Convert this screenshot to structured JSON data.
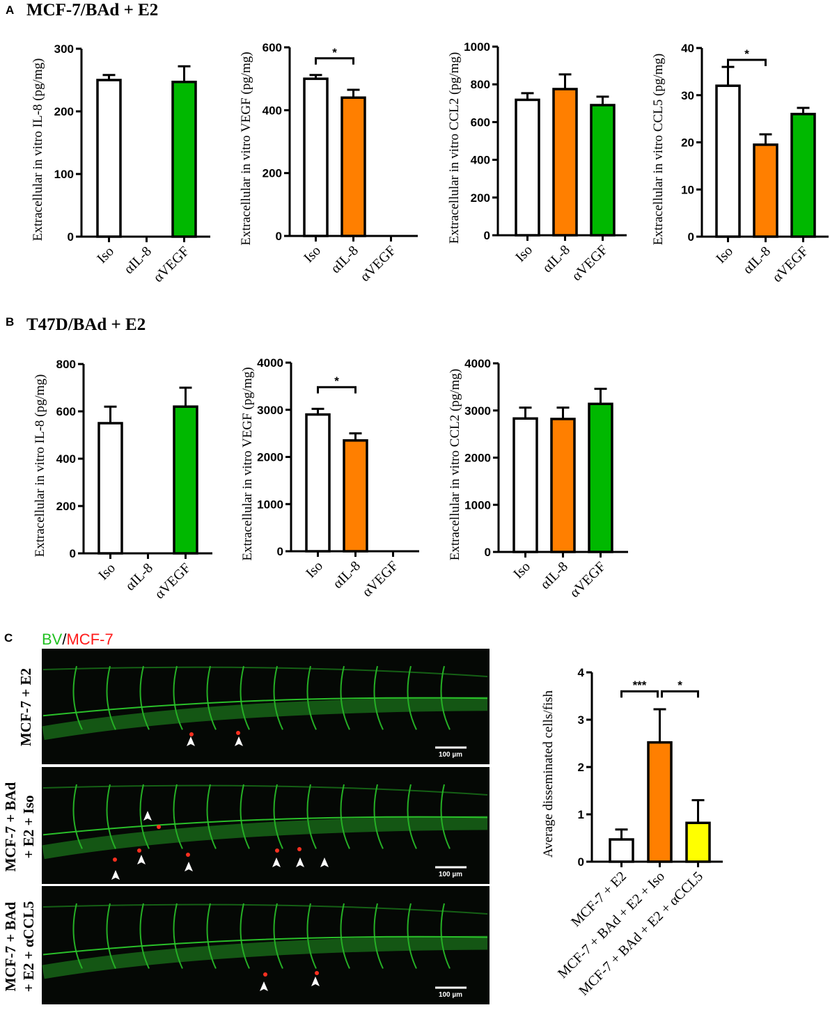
{
  "panels": {
    "A": {
      "letter": "A",
      "title": "MCF-7/BAd + E2"
    },
    "B": {
      "letter": "B",
      "title": "T47D/BAd + E2"
    },
    "C": {
      "letter": "C",
      "legend_bv": "BV",
      "legend_sep": "/",
      "legend_mcf": "MCF-7",
      "rows": [
        "MCF-7 + E2",
        "MCF-7 + BAd",
        "+ E2 + Iso",
        "MCF-7 + BAd",
        "+ E2 + αCCL5"
      ],
      "scale_bar_label": "100 µm"
    }
  },
  "colors": {
    "white": "#ffffff",
    "orange": "#ff7f00",
    "green": "#00b800",
    "yellow": "#ffff00"
  },
  "chart_data": [
    {
      "type": "bar",
      "panel": "A",
      "ylabel": "Extracellular in vitro IL-8 (pg/mg)",
      "categories": [
        "Iso",
        "αIL-8",
        "αVEGF"
      ],
      "values": [
        250,
        0,
        247
      ],
      "errors": [
        8,
        0,
        25
      ],
      "colors": [
        "#ffffff",
        "#ff7f00",
        "#00b800"
      ],
      "ylim": [
        0,
        300
      ],
      "yticks": [
        0,
        100,
        200,
        300
      ],
      "sig": []
    },
    {
      "type": "bar",
      "panel": "A",
      "ylabel": "Extracellular in vitro VEGF (pg/mg)",
      "categories": [
        "Iso",
        "αIL-8",
        "αVEGF"
      ],
      "values": [
        500,
        440,
        0
      ],
      "errors": [
        12,
        25,
        0
      ],
      "colors": [
        "#ffffff",
        "#ff7f00",
        "#00b800"
      ],
      "ylim": [
        0,
        600
      ],
      "yticks": [
        0,
        200,
        400,
        600
      ],
      "sig": [
        {
          "from": 0,
          "to": 1,
          "level": 565,
          "label": "*"
        }
      ]
    },
    {
      "type": "bar",
      "panel": "A",
      "ylabel": "Extracellular in vitro CCL2 (pg/mg)",
      "categories": [
        "Iso",
        "αIL-8",
        "αVEGF"
      ],
      "values": [
        718,
        775,
        690
      ],
      "errors": [
        35,
        78,
        45
      ],
      "colors": [
        "#ffffff",
        "#ff7f00",
        "#00b800"
      ],
      "ylim": [
        0,
        1000
      ],
      "yticks": [
        0,
        200,
        400,
        600,
        800,
        1000
      ],
      "sig": []
    },
    {
      "type": "bar",
      "panel": "A",
      "ylabel": "Extracellular in vitro CCL5 (pg/mg)",
      "categories": [
        "Iso",
        "αIL-8",
        "αVEGF"
      ],
      "values": [
        32,
        19.5,
        26
      ],
      "errors": [
        4,
        2.2,
        1.3
      ],
      "colors": [
        "#ffffff",
        "#ff7f00",
        "#00b800"
      ],
      "ylim": [
        0,
        40
      ],
      "yticks": [
        0,
        10,
        20,
        30,
        40
      ],
      "sig": [
        {
          "from": 0,
          "to": 1,
          "level": 37.5,
          "label": "*"
        }
      ]
    },
    {
      "type": "bar",
      "panel": "B",
      "ylabel": "Extracellular in vitro IL-8 (pg/mg)",
      "categories": [
        "Iso",
        "αIL-8",
        "αVEGF"
      ],
      "values": [
        550,
        0,
        620
      ],
      "errors": [
        70,
        0,
        80
      ],
      "colors": [
        "#ffffff",
        "#ff7f00",
        "#00b800"
      ],
      "ylim": [
        0,
        800
      ],
      "yticks": [
        0,
        200,
        400,
        600,
        800
      ],
      "sig": []
    },
    {
      "type": "bar",
      "panel": "B",
      "ylabel": "Extracellular in vitro VEGF (pg/mg)",
      "categories": [
        "Iso",
        "αIL-8",
        "αVEGF"
      ],
      "values": [
        2900,
        2350,
        0
      ],
      "errors": [
        120,
        150,
        0
      ],
      "colors": [
        "#ffffff",
        "#ff7f00",
        "#00b800"
      ],
      "ylim": [
        0,
        4000
      ],
      "yticks": [
        0,
        1000,
        2000,
        3000,
        4000
      ],
      "sig": [
        {
          "from": 0,
          "to": 1,
          "level": 3480,
          "label": "*"
        }
      ]
    },
    {
      "type": "bar",
      "panel": "B",
      "ylabel": "Extracellular in vitro CCL2 (pg/mg)",
      "categories": [
        "Iso",
        "αIL-8",
        "αVEGF"
      ],
      "values": [
        2830,
        2820,
        3140
      ],
      "errors": [
        230,
        240,
        320
      ],
      "colors": [
        "#ffffff",
        "#ff7f00",
        "#00b800"
      ],
      "ylim": [
        0,
        4000
      ],
      "yticks": [
        0,
        1000,
        2000,
        3000,
        4000
      ],
      "sig": []
    },
    {
      "type": "bar",
      "panel": "C",
      "ylabel": "Average disseminated cells/fish",
      "categories": [
        "MCF-7 + E2",
        "MCF-7 + BAd + E2 + Iso",
        "MCF-7 + BAd + E2 + αCCL5"
      ],
      "values": [
        0.47,
        2.52,
        0.82
      ],
      "errors": [
        0.21,
        0.7,
        0.48
      ],
      "colors": [
        "#ffffff",
        "#ff7f00",
        "#ffff00"
      ],
      "ylim": [
        0,
        4
      ],
      "yticks": [
        0,
        1,
        2,
        3,
        4
      ],
      "sig": [
        {
          "from": 0,
          "to": 1,
          "level": 3.6,
          "label": "***"
        },
        {
          "from": 1,
          "to": 2,
          "level": 3.6,
          "label": "*"
        }
      ]
    }
  ]
}
